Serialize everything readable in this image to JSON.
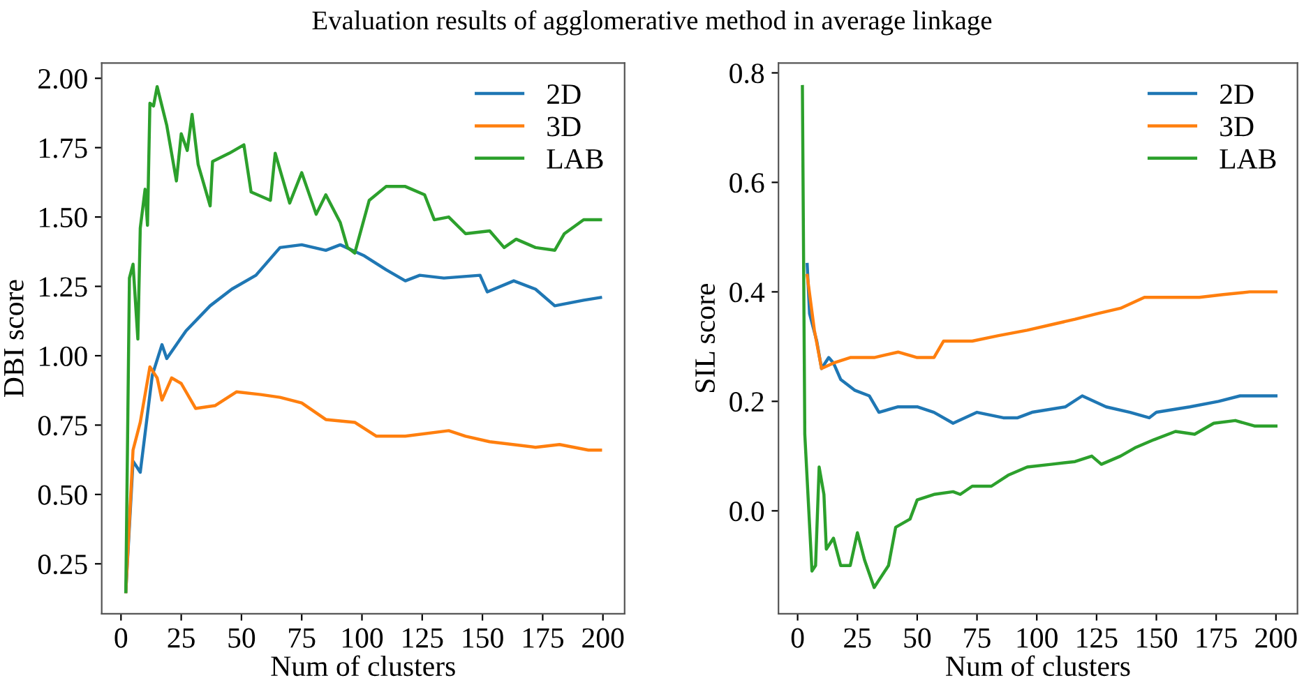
{
  "chart_data": [
    {
      "type": "line",
      "title": "Evaluation results of agglomerative method in average linkage",
      "xlabel": "Num of clusters",
      "ylabel": "DBI score",
      "xlim": [
        -8,
        209
      ],
      "ylim": [
        0.07,
        2.055
      ],
      "xticks": [
        0,
        25,
        50,
        75,
        100,
        125,
        150,
        175,
        200
      ],
      "yticks": [
        0.25,
        {
          "value": 0.5,
          "label": "0.50"
        },
        0.75,
        {
          "value": 1,
          "label": "1.00"
        },
        1.25,
        {
          "value": 1.5,
          "label": "1.50"
        },
        1.75,
        {
          "value": 2,
          "label": "2.00"
        }
      ],
      "legend": "top right",
      "grid": false,
      "line_style": "solid",
      "marker": "none",
      "series": [
        {
          "name": "2D",
          "color": "#1f77b4",
          "x": [
            2,
            5,
            8,
            11,
            13,
            17,
            19,
            27,
            37,
            46,
            56,
            66,
            75,
            85,
            91,
            101,
            110,
            118,
            124,
            134,
            149,
            152,
            163,
            172,
            180,
            192,
            199
          ],
          "values": [
            0.15,
            0.62,
            0.58,
            0.79,
            0.93,
            1.04,
            0.99,
            1.09,
            1.18,
            1.24,
            1.29,
            1.39,
            1.4,
            1.38,
            1.4,
            1.36,
            1.31,
            1.27,
            1.29,
            1.28,
            1.29,
            1.23,
            1.27,
            1.24,
            1.18,
            1.2,
            1.21
          ]
        },
        {
          "name": "3D",
          "color": "#ff7f0e",
          "x": [
            2,
            5,
            8,
            12,
            15,
            17,
            21,
            25,
            31,
            39,
            48,
            58,
            66,
            75,
            85,
            97,
            106,
            118,
            136,
            143,
            153,
            172,
            182,
            194,
            199
          ],
          "values": [
            0.15,
            0.66,
            0.76,
            0.96,
            0.92,
            0.84,
            0.92,
            0.9,
            0.81,
            0.82,
            0.87,
            0.86,
            0.85,
            0.83,
            0.77,
            0.76,
            0.71,
            0.71,
            0.73,
            0.71,
            0.69,
            0.67,
            0.68,
            0.66,
            0.66
          ]
        },
        {
          "name": "LAB",
          "color": "#2ca02c",
          "x": [
            2,
            3.5,
            5,
            7,
            8,
            10,
            11,
            12,
            13.5,
            15,
            19,
            23,
            25,
            27.5,
            29.5,
            32,
            37,
            38,
            45,
            51,
            54,
            62,
            64,
            70,
            75,
            81,
            85,
            91,
            94,
            97,
            103,
            110,
            118,
            126,
            130,
            136,
            143,
            153,
            159,
            164,
            172,
            180,
            184,
            192,
            199
          ],
          "values": [
            0.15,
            1.28,
            1.33,
            1.06,
            1.46,
            1.6,
            1.47,
            1.91,
            1.9,
            1.97,
            1.83,
            1.63,
            1.8,
            1.74,
            1.87,
            1.69,
            1.54,
            1.7,
            1.73,
            1.76,
            1.59,
            1.56,
            1.73,
            1.55,
            1.66,
            1.51,
            1.58,
            1.48,
            1.39,
            1.37,
            1.56,
            1.61,
            1.61,
            1.58,
            1.49,
            1.5,
            1.44,
            1.45,
            1.39,
            1.42,
            1.39,
            1.38,
            1.44,
            1.49,
            1.49
          ]
        }
      ]
    },
    {
      "type": "line",
      "xlabel": "Num of clusters",
      "ylabel": "SIL score",
      "xlim": [
        -8,
        209
      ],
      "ylim": [
        -0.188,
        0.818
      ],
      "xticks": [
        0,
        25,
        50,
        75,
        100,
        125,
        150,
        175,
        200
      ],
      "yticks": [
        {
          "value": 0,
          "label": "0.0"
        },
        0.2,
        0.4,
        0.6,
        0.8
      ],
      "legend": "top right",
      "grid": false,
      "line_style": "solid",
      "marker": "none",
      "series": [
        {
          "name": "2D",
          "color": "#1f77b4",
          "x": [
            4,
            5,
            8,
            10,
            13,
            15,
            18,
            24,
            30,
            34,
            42,
            50,
            57,
            65,
            75,
            86,
            92,
            98,
            112,
            119,
            129,
            139,
            147,
            150,
            164,
            176,
            185,
            193,
            200
          ],
          "values": [
            0.45,
            0.36,
            0.31,
            0.26,
            0.28,
            0.27,
            0.24,
            0.22,
            0.21,
            0.18,
            0.19,
            0.19,
            0.18,
            0.16,
            0.18,
            0.17,
            0.17,
            0.18,
            0.19,
            0.21,
            0.19,
            0.18,
            0.17,
            0.18,
            0.19,
            0.2,
            0.21,
            0.21,
            0.21
          ]
        },
        {
          "name": "3D",
          "color": "#ff7f0e",
          "x": [
            4,
            7,
            10,
            15,
            22,
            32,
            42,
            50,
            57,
            61,
            73,
            84,
            96,
            106,
            116,
            125,
            135,
            145,
            154,
            168,
            178,
            189,
            200
          ],
          "values": [
            0.43,
            0.33,
            0.26,
            0.27,
            0.28,
            0.28,
            0.29,
            0.28,
            0.28,
            0.31,
            0.31,
            0.32,
            0.33,
            0.34,
            0.35,
            0.36,
            0.37,
            0.39,
            0.39,
            0.39,
            0.395,
            0.4,
            0.4
          ]
        },
        {
          "name": "LAB",
          "color": "#2ca02c",
          "x": [
            2,
            3,
            6,
            7.5,
            9,
            11,
            12,
            15,
            18,
            22,
            25,
            28,
            32,
            38,
            41,
            47,
            50,
            57,
            65,
            68,
            73,
            81,
            88,
            96,
            106,
            116,
            123,
            127,
            135,
            141,
            149,
            158,
            166,
            174,
            183,
            191,
            200
          ],
          "values": [
            0.775,
            0.14,
            -0.11,
            -0.1,
            0.08,
            0.03,
            -0.07,
            -0.05,
            -0.1,
            -0.1,
            -0.04,
            -0.09,
            -0.14,
            -0.1,
            -0.03,
            -0.015,
            0.02,
            0.03,
            0.035,
            0.03,
            0.045,
            0.045,
            0.065,
            0.08,
            0.085,
            0.09,
            0.1,
            0.085,
            0.1,
            0.115,
            0.13,
            0.145,
            0.14,
            0.16,
            0.165,
            0.155,
            0.155
          ]
        }
      ]
    }
  ]
}
